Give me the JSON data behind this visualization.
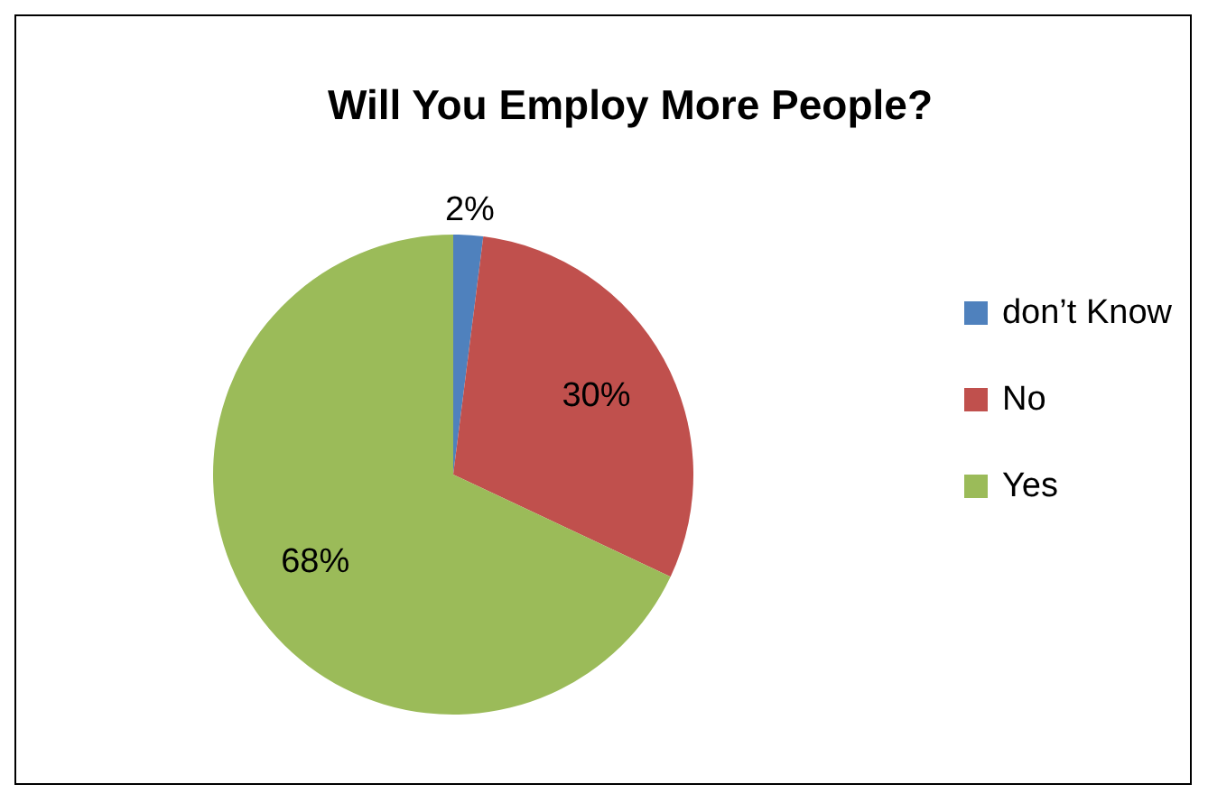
{
  "chart_data": {
    "type": "pie",
    "title": "Will You Employ More People?",
    "categories": [
      "don’t Know",
      "No",
      "Yes"
    ],
    "values": [
      2,
      30,
      68
    ],
    "value_labels": [
      "2%",
      "30%",
      "68%"
    ],
    "colors": [
      "#4f81bd",
      "#c0504d",
      "#9bbb59"
    ],
    "legend": "right"
  }
}
